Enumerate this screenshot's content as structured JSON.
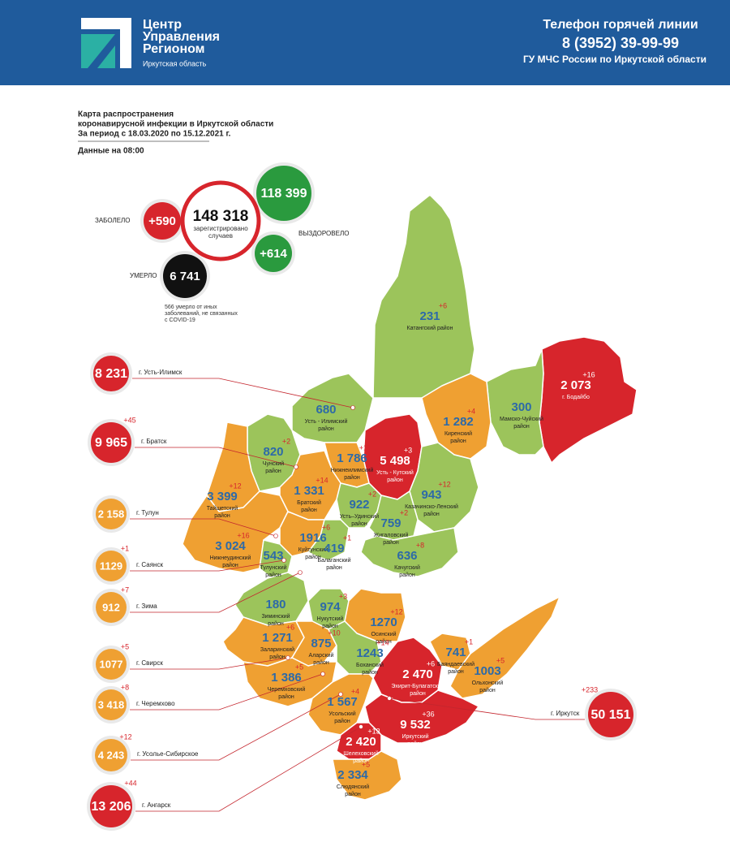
{
  "header": {
    "logo_lines": [
      "Центр",
      "Управления",
      "Регионом"
    ],
    "region": "Иркутская область",
    "hotline_title": "Телефон горячей линии",
    "phone": "8 (3952) 39-99-99",
    "org": "ГУ МЧС России по Иркутской области"
  },
  "title": {
    "lines": [
      "Карта распространения",
      "коронавирусной инфекции в Иркутской области",
      "За период с 18.03.2020 по 15.12.2021 г."
    ],
    "date_note": "Данные на 08:00"
  },
  "summary": {
    "infected_label": "ЗАБОЛЕЛО",
    "infected_delta": "+590",
    "total": "148 318",
    "total_caption": [
      "зарегистрировано",
      "случаев"
    ],
    "recovered": "118 399",
    "recovered_delta": "+614",
    "recovered_label": "ВЫЗДОРОВЕЛО",
    "died_label": "УМЕРЛО",
    "died": "6 741",
    "died_note": [
      "566 умерло от иных",
      "заболеваний, не связанных",
      "с COVID-19"
    ]
  },
  "cities": [
    {
      "name": "г. Усть-Илимск",
      "count": "8 231",
      "color": "#d7252c"
    },
    {
      "name": "г. Братск",
      "count": "9 965",
      "delta": "+45",
      "color": "#d7252c"
    },
    {
      "name": "г. Тулун",
      "count": "2 158",
      "color": "#efa032"
    },
    {
      "name": "г. Саянск",
      "count": "1129",
      "delta": "+1",
      "color": "#efa032"
    },
    {
      "name": "г. Зима",
      "count": "912",
      "delta": "+7",
      "color": "#efa032"
    },
    {
      "name": "г. Свирск",
      "count": "1077",
      "delta": "+5",
      "color": "#efa032"
    },
    {
      "name": "г. Черемхово",
      "count": "3 418",
      "delta": "+8",
      "color": "#efa032"
    },
    {
      "name": "г. Усолье-Сибирское",
      "count": "4 243",
      "delta": "+12",
      "color": "#efa032"
    },
    {
      "name": "г. Ангарск",
      "count": "13 206",
      "delta": "+44",
      "color": "#d7252c"
    },
    {
      "name": "г. Иркутск",
      "count": "50 151",
      "delta": "+233",
      "color": "#d7252c"
    }
  ],
  "districts": [
    {
      "name": [
        "Катангский район"
      ],
      "count": "231",
      "delta": "+6",
      "color": "#9cc45b"
    },
    {
      "name": [
        "г. Бодайбо"
      ],
      "count": "2 073",
      "delta": "+16",
      "color": "#d7252c"
    },
    {
      "name": [
        "Мамско-Чуйский",
        "район"
      ],
      "count": "300",
      "color": "#9cc45b"
    },
    {
      "name": [
        "Киренский",
        "район"
      ],
      "count": "1 282",
      "delta": "+4",
      "color": "#efa032"
    },
    {
      "name": [
        "Усть - Кутский",
        "район"
      ],
      "count": "5 498",
      "delta": "+3",
      "color": "#d7252c"
    },
    {
      "name": [
        "Усть - Илимский",
        "район"
      ],
      "count": "680",
      "color": "#9cc45b"
    },
    {
      "name": [
        "Нижнеилимский",
        "район"
      ],
      "count": "1 786",
      "delta": "+11",
      "color": "#efa032"
    },
    {
      "name": [
        "Чунский",
        "район"
      ],
      "count": "820",
      "delta": "+2",
      "color": "#9cc45b"
    },
    {
      "name": [
        "Братский",
        "район"
      ],
      "count": "1 331",
      "delta": "+14",
      "color": "#efa032"
    },
    {
      "name": [
        "Тайшетский",
        "район"
      ],
      "count": "3 399",
      "delta": "+12",
      "color": "#efa032"
    },
    {
      "name": [
        "Усть–Удинский",
        "район"
      ],
      "count": "922",
      "delta": "+2",
      "color": "#9cc45b"
    },
    {
      "name": [
        "Казачинско-Ленский",
        "район"
      ],
      "count": "943",
      "delta": "+12",
      "color": "#9cc45b"
    },
    {
      "name": [
        "Жигаловский",
        "район"
      ],
      "count": "759",
      "delta": "+2",
      "color": "#9cc45b"
    },
    {
      "name": [
        "Нижнеудинский",
        "район"
      ],
      "count": "3 024",
      "delta": "+16",
      "color": "#efa032"
    },
    {
      "name": [
        "Куйтунский",
        "район"
      ],
      "count": "1916",
      "delta": "+6",
      "color": "#efa032"
    },
    {
      "name": [
        "Тулунский",
        "район"
      ],
      "count": "543",
      "color": "#9cc45b"
    },
    {
      "name": [
        "Балаганский",
        "район"
      ],
      "count": "419",
      "delta": "+1",
      "color": "#9cc45b"
    },
    {
      "name": [
        "Качугский",
        "район"
      ],
      "count": "636",
      "delta": "+8",
      "color": "#9cc45b"
    },
    {
      "name": [
        "Зиминский",
        "район"
      ],
      "count": "180",
      "color": "#9cc45b"
    },
    {
      "name": [
        "Нукутский",
        "район"
      ],
      "count": "974",
      "delta": "+3",
      "color": "#9cc45b"
    },
    {
      "name": [
        "Осинский",
        "район"
      ],
      "count": "1270",
      "delta": "+12",
      "color": "#efa032"
    },
    {
      "name": [
        "Заларинский",
        "район"
      ],
      "count": "1 271",
      "delta": "+6",
      "color": "#efa032"
    },
    {
      "name": [
        "Аларский",
        "район"
      ],
      "count": "875",
      "delta": "+10",
      "color": "#efa032"
    },
    {
      "name": [
        "Боханский",
        "район"
      ],
      "count": "1243",
      "delta": "+14",
      "color": "#9cc45b"
    },
    {
      "name": [
        "Баяндаевский",
        "район"
      ],
      "count": "741",
      "delta": "+1",
      "color": "#efa032"
    },
    {
      "name": [
        "Ольхонский",
        "район"
      ],
      "count": "1003",
      "delta": "+5",
      "color": "#efa032"
    },
    {
      "name": [
        "Эхирит-Булагатский",
        "район"
      ],
      "count": "2 470",
      "delta": "+6",
      "color": "#d7252c"
    },
    {
      "name": [
        "Черемховский",
        "район"
      ],
      "count": "1 386",
      "delta": "+5",
      "color": "#efa032"
    },
    {
      "name": [
        "Усольский",
        "район"
      ],
      "count": "1 567",
      "delta": "+4",
      "color": "#efa032"
    },
    {
      "name": [
        "Иркутский",
        "район"
      ],
      "count": "9 532",
      "delta": "+36",
      "color": "#d7252c"
    },
    {
      "name": [
        "Шелеховский",
        "район"
      ],
      "count": "2 420",
      "delta": "+13",
      "color": "#d7252c"
    },
    {
      "name": [
        "Слюдянский",
        "район"
      ],
      "count": "2 334",
      "delta": "+5",
      "color": "#efa032"
    }
  ]
}
